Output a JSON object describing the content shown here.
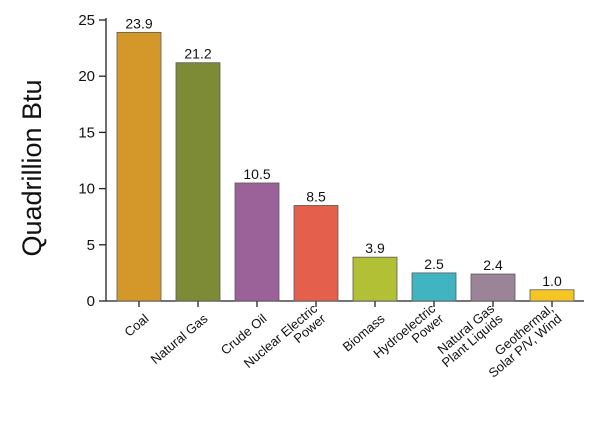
{
  "chart_data": {
    "type": "bar",
    "categories": [
      [
        "Coal"
      ],
      [
        "Natural Gas"
      ],
      [
        "Crude Oil"
      ],
      [
        "Nuclear Electric",
        "Power"
      ],
      [
        "Biomass"
      ],
      [
        "Hydroelectric",
        "Power"
      ],
      [
        "Natural Gas",
        "Plant Liquids"
      ],
      [
        "Geothermal,",
        "Solar P/V, Wind"
      ]
    ],
    "values": [
      23.9,
      21.2,
      10.5,
      8.5,
      3.9,
      2.5,
      2.4,
      1.0
    ],
    "value_labels": [
      "23.9",
      "21.2",
      "10.5",
      "8.5",
      "3.9",
      "2.5",
      "2.4",
      "1.0"
    ],
    "bar_colors": [
      "#d4982a",
      "#7d8a36",
      "#9b6299",
      "#e4604c",
      "#b2c035",
      "#40b5c1",
      "#9b8497",
      "#f5c525"
    ],
    "title": "",
    "xlabel": "",
    "ylabel": "Quadrillion Btu",
    "ylim": [
      0,
      25
    ],
    "yticks": [
      0,
      5,
      10,
      15,
      20,
      25
    ],
    "grid": false
  }
}
